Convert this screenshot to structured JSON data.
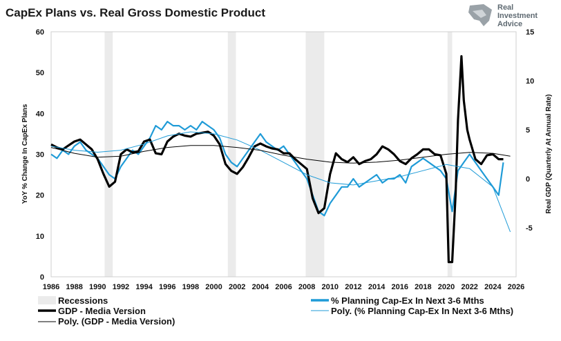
{
  "chart_data": {
    "type": "line",
    "title": "CapEx Plans vs. Real Gross Domestic Product",
    "ylabel_left": "YoY % Change In CapEx Plans",
    "ylabel_right": "Real GDP (Quarterly At Annual Rate)",
    "xlim": [
      1986,
      2026
    ],
    "ylim_left": [
      0,
      60
    ],
    "ylim_right": [
      -10,
      15
    ],
    "x_ticks": [
      "1986",
      "1988",
      "1990",
      "1992",
      "1994",
      "1996",
      "1998",
      "2000",
      "2002",
      "2004",
      "2006",
      "2008",
      "2010",
      "2012",
      "2014",
      "2016",
      "2018",
      "2020",
      "2022",
      "2024",
      "2026"
    ],
    "y_ticks_left": [
      "0",
      "10",
      "20",
      "30",
      "40",
      "50",
      "60"
    ],
    "y_ticks_right": [
      "-5",
      "0",
      "5",
      "10",
      "15"
    ],
    "y_ticks_right_values": [
      -5,
      0,
      5,
      10,
      15
    ],
    "recessions": [
      [
        1990.6,
        1991.3
      ],
      [
        2001.2,
        2001.9
      ],
      [
        2007.9,
        2009.5
      ],
      [
        2020.1,
        2020.5
      ]
    ],
    "series": [
      {
        "name": "% Planning Cap-Ex In Next 3-6 Mths",
        "axis": "left",
        "color": "#1f9bd7",
        "x": [
          1986,
          1986.5,
          1987,
          1987.5,
          1988,
          1988.5,
          1989,
          1989.5,
          1990,
          1990.5,
          1991,
          1991.5,
          1992,
          1992.5,
          1993,
          1993.5,
          1994,
          1994.5,
          1995,
          1995.5,
          1996,
          1996.5,
          1997,
          1997.5,
          1998,
          1998.5,
          1999,
          1999.5,
          2000,
          2000.5,
          2001,
          2001.5,
          2002,
          2002.5,
          2003,
          2003.5,
          2004,
          2004.5,
          2005,
          2005.5,
          2006,
          2006.5,
          2007,
          2007.5,
          2008,
          2008.5,
          2009,
          2009.5,
          2010,
          2010.5,
          2011,
          2011.5,
          2012,
          2012.5,
          2013,
          2013.5,
          2014,
          2014.5,
          2015,
          2015.5,
          2016,
          2016.5,
          2017,
          2017.5,
          2018,
          2018.5,
          2019,
          2019.5,
          2020,
          2020.5,
          2021,
          2021.5,
          2022,
          2022.5,
          2023,
          2023.5,
          2024,
          2024.5,
          2024.9
        ],
        "values": [
          30,
          29,
          31,
          30,
          32,
          33,
          31,
          30,
          29,
          27,
          25,
          24,
          27,
          29,
          31,
          30,
          32,
          34,
          37,
          36,
          38,
          37,
          37,
          36,
          37,
          36,
          38,
          37,
          36,
          34,
          30,
          28,
          27,
          29,
          31,
          33,
          35,
          33,
          32,
          31,
          32,
          30,
          28,
          26,
          24,
          20,
          16,
          15,
          18,
          20,
          22,
          22,
          24,
          22,
          23,
          24,
          25,
          23,
          24,
          24,
          25,
          23,
          27,
          28,
          29,
          28,
          27,
          26,
          24,
          16,
          26,
          28,
          30,
          28,
          26,
          24,
          22,
          20,
          28
        ]
      },
      {
        "name": "GDP - Media Version",
        "axis": "right",
        "color": "#000000",
        "x": [
          1986,
          1986.5,
          1987,
          1987.5,
          1988,
          1988.5,
          1989,
          1989.5,
          1990,
          1990.5,
          1991,
          1991.5,
          1992,
          1992.5,
          1993,
          1993.5,
          1994,
          1994.5,
          1995,
          1995.5,
          1996,
          1996.5,
          1997,
          1997.5,
          1998,
          1998.5,
          1999,
          1999.5,
          2000,
          2000.5,
          2001,
          2001.5,
          2002,
          2002.5,
          2003,
          2003.5,
          2004,
          2004.5,
          2005,
          2005.5,
          2006,
          2006.5,
          2007,
          2007.5,
          2008,
          2008.5,
          2009,
          2009.5,
          2010,
          2010.5,
          2011,
          2011.5,
          2012,
          2012.5,
          2013,
          2013.5,
          2014,
          2014.5,
          2015,
          2015.5,
          2016,
          2016.5,
          2017,
          2017.5,
          2018,
          2018.5,
          2019,
          2019.5,
          2020,
          2020.2,
          2020.5,
          2020.8,
          2021,
          2021.3,
          2021.5,
          2021.8,
          2022,
          2022.5,
          2023,
          2023.5,
          2024,
          2024.5,
          2024.9
        ],
        "values": [
          3.5,
          3.2,
          3.0,
          3.4,
          3.8,
          4.0,
          3.5,
          3.0,
          2.0,
          0.5,
          -0.8,
          -0.3,
          2.5,
          3.0,
          2.7,
          2.8,
          3.8,
          4.0,
          2.6,
          2.5,
          3.8,
          4.3,
          4.6,
          4.4,
          4.3,
          4.6,
          4.7,
          4.8,
          4.4,
          3.5,
          1.5,
          0.8,
          0.5,
          1.2,
          2.2,
          3.3,
          3.6,
          3.3,
          3.1,
          3.0,
          2.6,
          2.6,
          2.0,
          1.5,
          1.0,
          -2.0,
          -3.5,
          -3.0,
          0.5,
          2.6,
          2.0,
          1.7,
          2.2,
          1.5,
          1.8,
          2.0,
          2.5,
          3.3,
          3.0,
          2.5,
          1.8,
          1.5,
          2.1,
          2.5,
          3.0,
          3.0,
          2.5,
          2.4,
          0.5,
          -8.5,
          -8.5,
          -1.5,
          6.0,
          12.5,
          8.0,
          5.0,
          4.0,
          2.0,
          1.5,
          2.4,
          2.5,
          2.0,
          2.0
        ]
      },
      {
        "name": "Poly. (% Planning Cap-Ex In Next 3-6 Mths)",
        "axis": "left",
        "color": "#1f9bd7",
        "x": [
          1986,
          1988,
          1990,
          1992,
          1994,
          1996,
          1998,
          2000,
          2002,
          2004,
          2006,
          2008,
          2010,
          2012,
          2014,
          2016,
          2018,
          2020,
          2022,
          2024,
          2025.5
        ],
        "values": [
          32,
          31,
          30.5,
          31,
          32.5,
          34.5,
          35.5,
          35,
          33.5,
          31,
          28,
          25,
          23,
          22.5,
          23.5,
          24.5,
          26,
          27.5,
          26.5,
          22,
          11
        ]
      },
      {
        "name": "Poly. (GDP - Media Version)",
        "axis": "right",
        "color": "#000000",
        "x": [
          1986,
          1988,
          1990,
          1992,
          1994,
          1996,
          1998,
          2000,
          2002,
          2004,
          2006,
          2008,
          2010,
          2012,
          2014,
          2016,
          2018,
          2020,
          2022,
          2024,
          2025.5
        ],
        "values": [
          3.2,
          2.6,
          2.2,
          2.3,
          2.8,
          3.2,
          3.4,
          3.4,
          3.2,
          2.9,
          2.4,
          2.0,
          1.7,
          1.6,
          1.7,
          1.9,
          2.2,
          2.5,
          2.7,
          2.6,
          2.3
        ]
      }
    ],
    "legend": {
      "recessions": "Recessions",
      "capex": "% Planning Cap-Ex In Next 3-6 Mths",
      "gdp": "GDP - Media Version",
      "poly_capex": "Poly. (% Planning Cap-Ex In Next 3-6 Mths)",
      "poly_gdp": "Poly. (GDP - Media Version)"
    },
    "recession_color": "#ebebeb"
  },
  "logo": {
    "line1": "Real",
    "line2": "Investment",
    "line3": "Advice"
  }
}
